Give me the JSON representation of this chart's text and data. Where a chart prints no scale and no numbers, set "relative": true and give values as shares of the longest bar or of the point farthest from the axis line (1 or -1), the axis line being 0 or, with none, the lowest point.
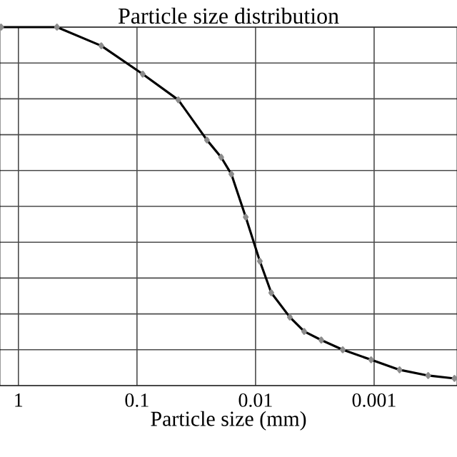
{
  "chart_data": {
    "type": "line",
    "title": "Particle size distribution",
    "xlabel": "Particle size (mm)",
    "log": "x",
    "relative": true,
    "grid": true,
    "marker": "diamond",
    "line_style": "solid",
    "xlim": [
      1.43,
      0.0002
    ],
    "xticks": [
      1,
      0.1,
      0.01,
      0.001
    ],
    "x": [
      1.4,
      0.473,
      0.2,
      0.0895,
      0.0448,
      0.0257,
      0.0195,
      0.016,
      0.0121,
      0.0092,
      0.00737,
      0.00514,
      0.00389,
      0.00279,
      0.00184,
      0.00106,
      0.00061,
      0.00035,
      0.00021
    ],
    "series": [
      {
        "color": "#000000",
        "values": [
          1,
          1,
          0.948,
          0.869,
          0.797,
          0.685,
          0.637,
          0.59,
          0.47,
          0.347,
          0.259,
          0.191,
          0.151,
          0.127,
          0.1,
          0.072,
          0.044,
          0.028,
          0.02
        ]
      }
    ],
    "tick_labels": "x"
  }
}
